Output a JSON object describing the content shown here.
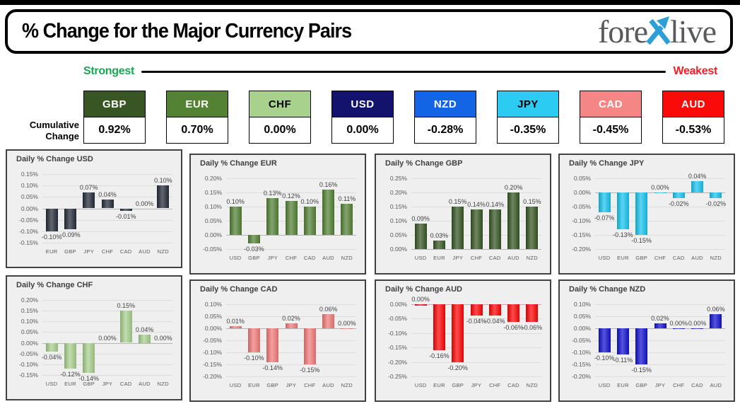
{
  "header": {
    "title": "% Change for the Major Currency Pairs",
    "logo_fore": "fore",
    "logo_live": "live"
  },
  "scale": {
    "strongest": "Strongest",
    "weakest": "Weakest"
  },
  "accents": {
    "strongest_color": "#17A851",
    "weakest_color": "#FB1B22",
    "logo_text_color": "#58595B",
    "logo_x_color": "#2D9FD8",
    "topbar_color": "#000000"
  },
  "cumulative": {
    "label_line1": "Cumulative",
    "label_line2": "Change",
    "items": [
      {
        "code": "GBP",
        "value": "0.92%",
        "bg": "#375623",
        "text_color": "#FFFFFF"
      },
      {
        "code": "EUR",
        "value": "0.70%",
        "bg": "#548235",
        "text_color": "#FFFFFF"
      },
      {
        "code": "CHF",
        "value": "0.00%",
        "bg": "#A9D18E",
        "text_color": "#000000"
      },
      {
        "code": "USD",
        "value": "0.00%",
        "bg": "#13136E",
        "text_color": "#FFFFFF"
      },
      {
        "code": "NZD",
        "value": "-0.28%",
        "bg": "#1465E6",
        "text_color": "#FFFFFF"
      },
      {
        "code": "JPY",
        "value": "-0.35%",
        "bg": "#2CCBF2",
        "text_color": "#000000"
      },
      {
        "code": "CAD",
        "value": "-0.45%",
        "bg": "#F58686",
        "text_color": "#FFFFFF"
      },
      {
        "code": "AUD",
        "value": "-0.53%",
        "bg": "#FB0A0A",
        "text_color": "#FFFFFF"
      }
    ]
  },
  "chart_data": [
    {
      "type": "bar",
      "base": "USD",
      "title": "Daily % Change USD",
      "categories": [
        "EUR",
        "GBP",
        "JPY",
        "CHF",
        "CAD",
        "AUD",
        "NZD"
      ],
      "values": [
        -0.1,
        -0.09,
        0.07,
        0.04,
        -0.01,
        0,
        0.1
      ],
      "labels": [
        "-0.10%",
        "-0.09%",
        "0.07%",
        "0.04%",
        "-0.01%",
        "0.00%",
        "0.10%"
      ],
      "ticks": [
        0.15,
        0.1,
        0.05,
        0,
        -0.05,
        -0.1,
        -0.15
      ],
      "ylim": [
        -0.15,
        0.15
      ],
      "color": "#232C38",
      "grid": true,
      "legend": "none"
    },
    {
      "type": "bar",
      "base": "EUR",
      "title": "Daily % Change EUR",
      "categories": [
        "USD",
        "GBP",
        "JPY",
        "CHF",
        "CAD",
        "AUD",
        "NZD"
      ],
      "values": [
        0.1,
        -0.03,
        0.13,
        0.12,
        0.1,
        0.16,
        0.11
      ],
      "labels": [
        "0.10%",
        "-0.03%",
        "0.13%",
        "0.12%",
        "0.10%",
        "0.16%",
        "0.11%"
      ],
      "ticks": [
        0.2,
        0.15,
        0.1,
        0.05,
        0,
        -0.05
      ],
      "ylim": [
        -0.05,
        0.2
      ],
      "color": "#548235",
      "grid": true,
      "legend": "none"
    },
    {
      "type": "bar",
      "base": "GBP",
      "title": "Daily % Change GBP",
      "categories": [
        "USD",
        "EUR",
        "JPY",
        "CHF",
        "CAD",
        "AUD",
        "NZD"
      ],
      "values": [
        0.09,
        0.03,
        0.15,
        0.14,
        0.14,
        0.2,
        0.15
      ],
      "labels": [
        "0.09%",
        "0.03%",
        "0.15%",
        "0.14%",
        "0.14%",
        "0.20%",
        "0.15%"
      ],
      "ticks": [
        0.25,
        0.2,
        0.15,
        0.1,
        0.05,
        0
      ],
      "ylim": [
        0,
        0.25
      ],
      "color": "#375623",
      "grid": true,
      "legend": "none"
    },
    {
      "type": "bar",
      "base": "JPY",
      "title": "Daily % Change JPY",
      "categories": [
        "USD",
        "EUR",
        "GBP",
        "CHF",
        "CAD",
        "AUD",
        "NZD"
      ],
      "values": [
        -0.07,
        -0.13,
        -0.15,
        -0.003,
        -0.02,
        0.04,
        -0.02
      ],
      "labels": [
        "-0.07%",
        "-0.13%",
        "-0.15%",
        "0.00%",
        "-0.02%",
        "0.04%",
        "-0.02%"
      ],
      "ticks": [
        0.05,
        0,
        -0.05,
        -0.1,
        -0.15,
        -0.2
      ],
      "ylim": [
        -0.2,
        0.05
      ],
      "color": "#18C5F0",
      "grid": true,
      "legend": "none"
    },
    {
      "type": "bar",
      "base": "CHF",
      "title": "Daily % Change CHF",
      "categories": [
        "USD",
        "EUR",
        "GBP",
        "JPY",
        "CAD",
        "AUD",
        "NZD"
      ],
      "values": [
        -0.04,
        -0.12,
        -0.14,
        0,
        0.15,
        0.04,
        0
      ],
      "labels": [
        "-0.04%",
        "-0.12%",
        "-0.14%",
        "0.00%",
        "0.15%",
        "0.04%",
        "0.00%"
      ],
      "ticks": [
        0.2,
        0.15,
        0.1,
        0.05,
        0,
        -0.05,
        -0.1,
        -0.15
      ],
      "ylim": [
        -0.15,
        0.2
      ],
      "color": "#A9D18E",
      "grid": true,
      "legend": "none"
    },
    {
      "type": "bar",
      "base": "CAD",
      "title": "Daily % Change CAD",
      "categories": [
        "USD",
        "EUR",
        "GBP",
        "JPY",
        "CHF",
        "AUD",
        "NZD"
      ],
      "values": [
        0.01,
        -0.1,
        -0.14,
        0.02,
        -0.15,
        0.06,
        -0.003
      ],
      "labels": [
        "0.01%",
        "-0.10%",
        "-0.14%",
        "0.02%",
        "-0.15%",
        "0.06%",
        "0.00%"
      ],
      "ticks": [
        0.1,
        0.05,
        0,
        -0.05,
        -0.1,
        -0.15,
        -0.2
      ],
      "ylim": [
        -0.2,
        0.1
      ],
      "color": "#F27B7B",
      "grid": true,
      "legend": "none"
    },
    {
      "type": "bar",
      "base": "AUD",
      "title": "Daily % Change AUD",
      "categories": [
        "USD",
        "EUR",
        "GBP",
        "JPY",
        "CHF",
        "CAD",
        "NZD"
      ],
      "values": [
        -0.004,
        -0.16,
        -0.2,
        -0.04,
        -0.04,
        -0.06,
        -0.06
      ],
      "labels": [
        "0.00%",
        "-0.16%",
        "-0.20%",
        "-0.04%",
        "-0.04%",
        "-0.06%",
        "-0.06%"
      ],
      "ticks": [
        0,
        -0.05,
        -0.1,
        -0.15,
        -0.2,
        -0.25
      ],
      "ylim": [
        -0.25,
        0
      ],
      "color": "#FE0505",
      "grid": true,
      "legend": "none"
    },
    {
      "type": "bar",
      "base": "NZD",
      "title": "Daily % Change NZD",
      "categories": [
        "USD",
        "EUR",
        "GBP",
        "JPY",
        "CHF",
        "CAD",
        "AUD"
      ],
      "values": [
        -0.1,
        -0.11,
        -0.15,
        0.02,
        -0.003,
        -0.003,
        0.06
      ],
      "labels": [
        "-0.10%",
        "-0.11%",
        "-0.15%",
        "0.02%",
        "0.00%",
        "0.00%",
        "0.06%"
      ],
      "ticks": [
        0.1,
        0.05,
        0,
        -0.05,
        -0.1,
        -0.15,
        -0.2
      ],
      "ylim": [
        -0.2,
        0.1
      ],
      "color": "#1111D0",
      "grid": true,
      "legend": "none"
    }
  ]
}
